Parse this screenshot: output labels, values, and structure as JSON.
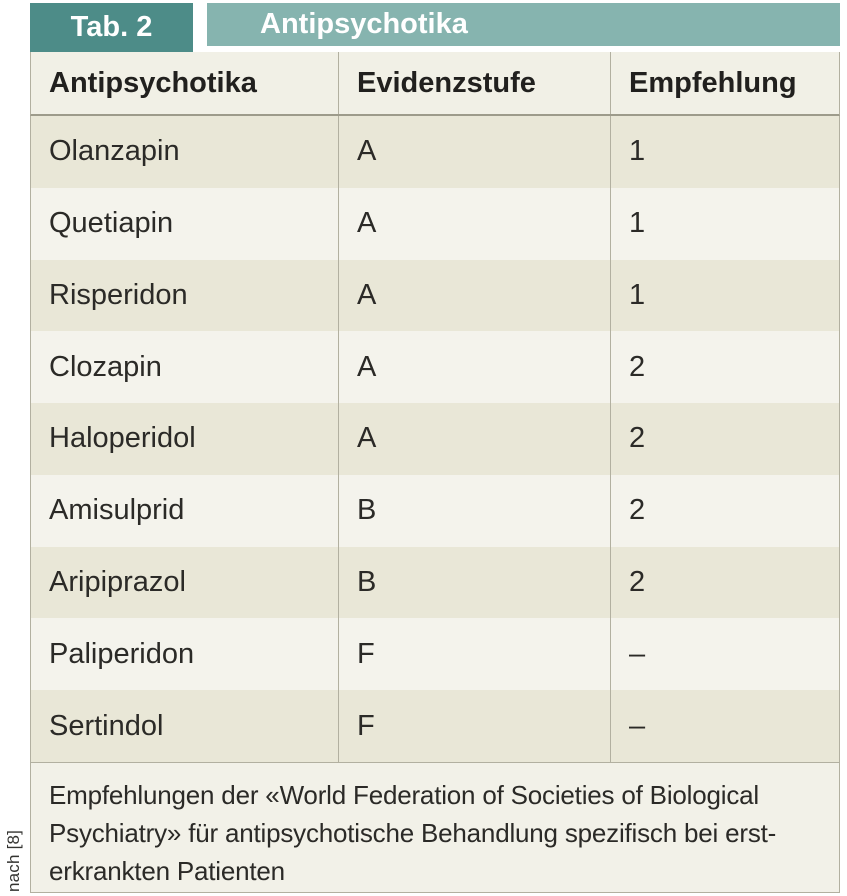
{
  "colors": {
    "accent_dark_teal": "#4d8c88",
    "accent_light_teal": "#86b4af",
    "header_bg": "#f1f0e6",
    "row_odd_bg": "#e9e7d7",
    "row_even_bg": "#f4f3ec",
    "footer_bg": "#f2f1e8",
    "border": "#b2b0a0"
  },
  "side_note": "nach [8]",
  "table": {
    "tag": "Tab. 2",
    "title": "Antipsychotika",
    "columns": [
      "Antipsychotika",
      "Evidenzstufe",
      "Empfehlung"
    ],
    "rows": [
      [
        "Olanzapin",
        "A",
        "1"
      ],
      [
        "Quetiapin",
        "A",
        "1"
      ],
      [
        "Risperidon",
        "A",
        "1"
      ],
      [
        "Clozapin",
        "A",
        "2"
      ],
      [
        "Haloperidol",
        "A",
        "2"
      ],
      [
        "Amisulprid",
        "B",
        "2"
      ],
      [
        "Aripiprazol",
        "B",
        "2"
      ],
      [
        "Paliperidon",
        "F",
        "–"
      ],
      [
        "Sertindol",
        "F",
        "–"
      ]
    ],
    "footer_lines": [
      "Empfehlungen der «World Federation of Societies of Biological",
      "Psychiatry» für antipsychotische Behandlung spezifisch bei erst-",
      "erkrankten Patienten"
    ]
  }
}
